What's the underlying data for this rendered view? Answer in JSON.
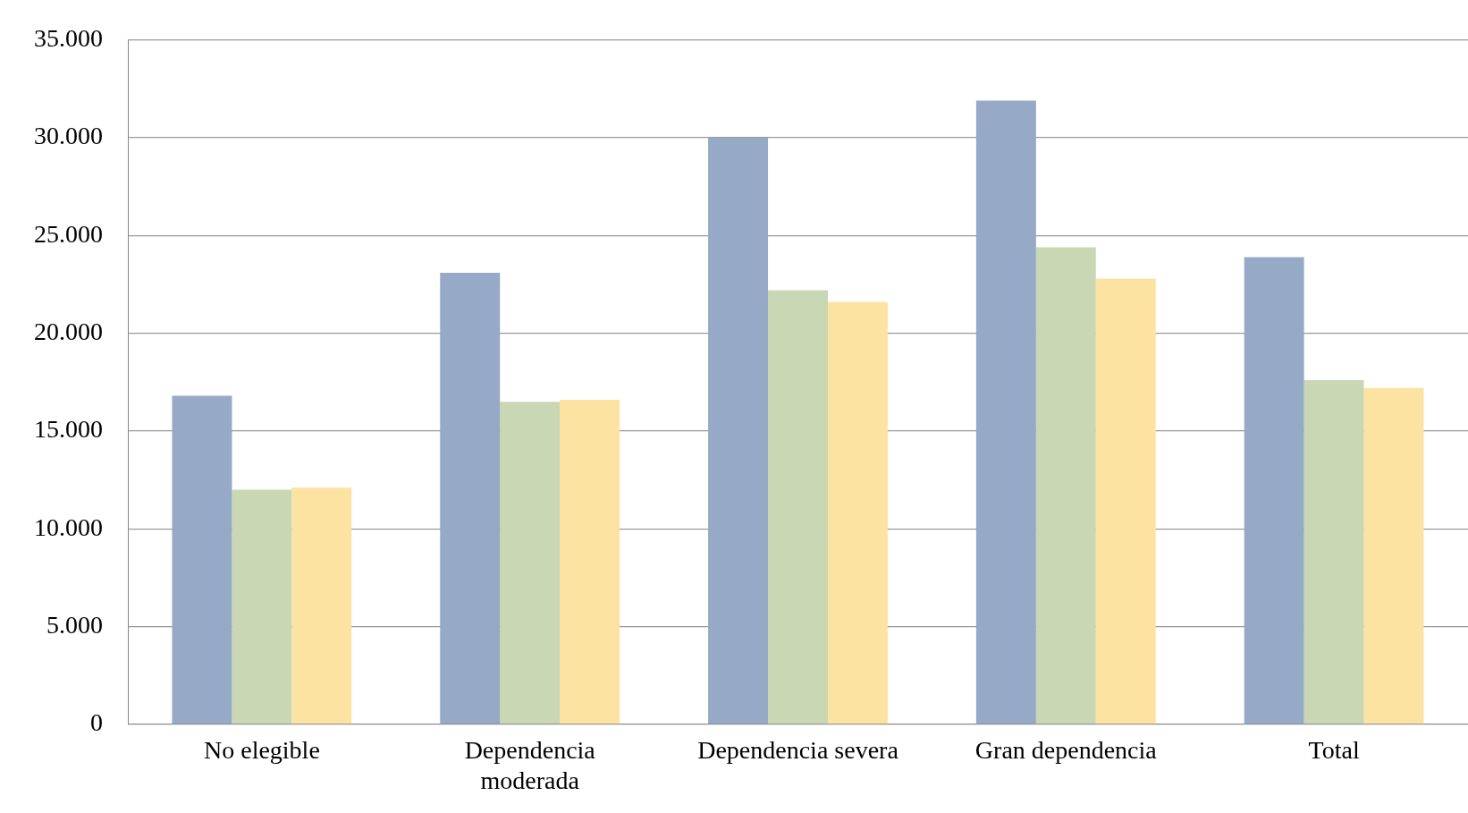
{
  "chart_data": {
    "type": "bar",
    "categories": [
      "No elegible",
      "Dependencia moderada",
      "Dependencia severa",
      "Gran dependencia",
      "Total"
    ],
    "series": [
      {
        "color": "#96a9c7",
        "values": [
          16800,
          23100,
          30000,
          31900,
          23900
        ]
      },
      {
        "color": "#c9d7b4",
        "values": [
          12000,
          16500,
          22200,
          24400,
          17600
        ]
      },
      {
        "color": "#fde3a2",
        "values": [
          12100,
          16600,
          21600,
          22800,
          17200
        ]
      }
    ],
    "ylim": [
      0,
      35000
    ],
    "yticks": [
      {
        "value": 0,
        "label": "0"
      },
      {
        "value": 5000,
        "label": "5.000"
      },
      {
        "value": 10000,
        "label": "10.000"
      },
      {
        "value": 15000,
        "label": "15.000"
      },
      {
        "value": 20000,
        "label": "20.000"
      },
      {
        "value": 25000,
        "label": "25.000"
      },
      {
        "value": 30000,
        "label": "30.000"
      },
      {
        "value": 35000,
        "label": "35.000"
      }
    ],
    "grid": "y",
    "legend": false
  }
}
